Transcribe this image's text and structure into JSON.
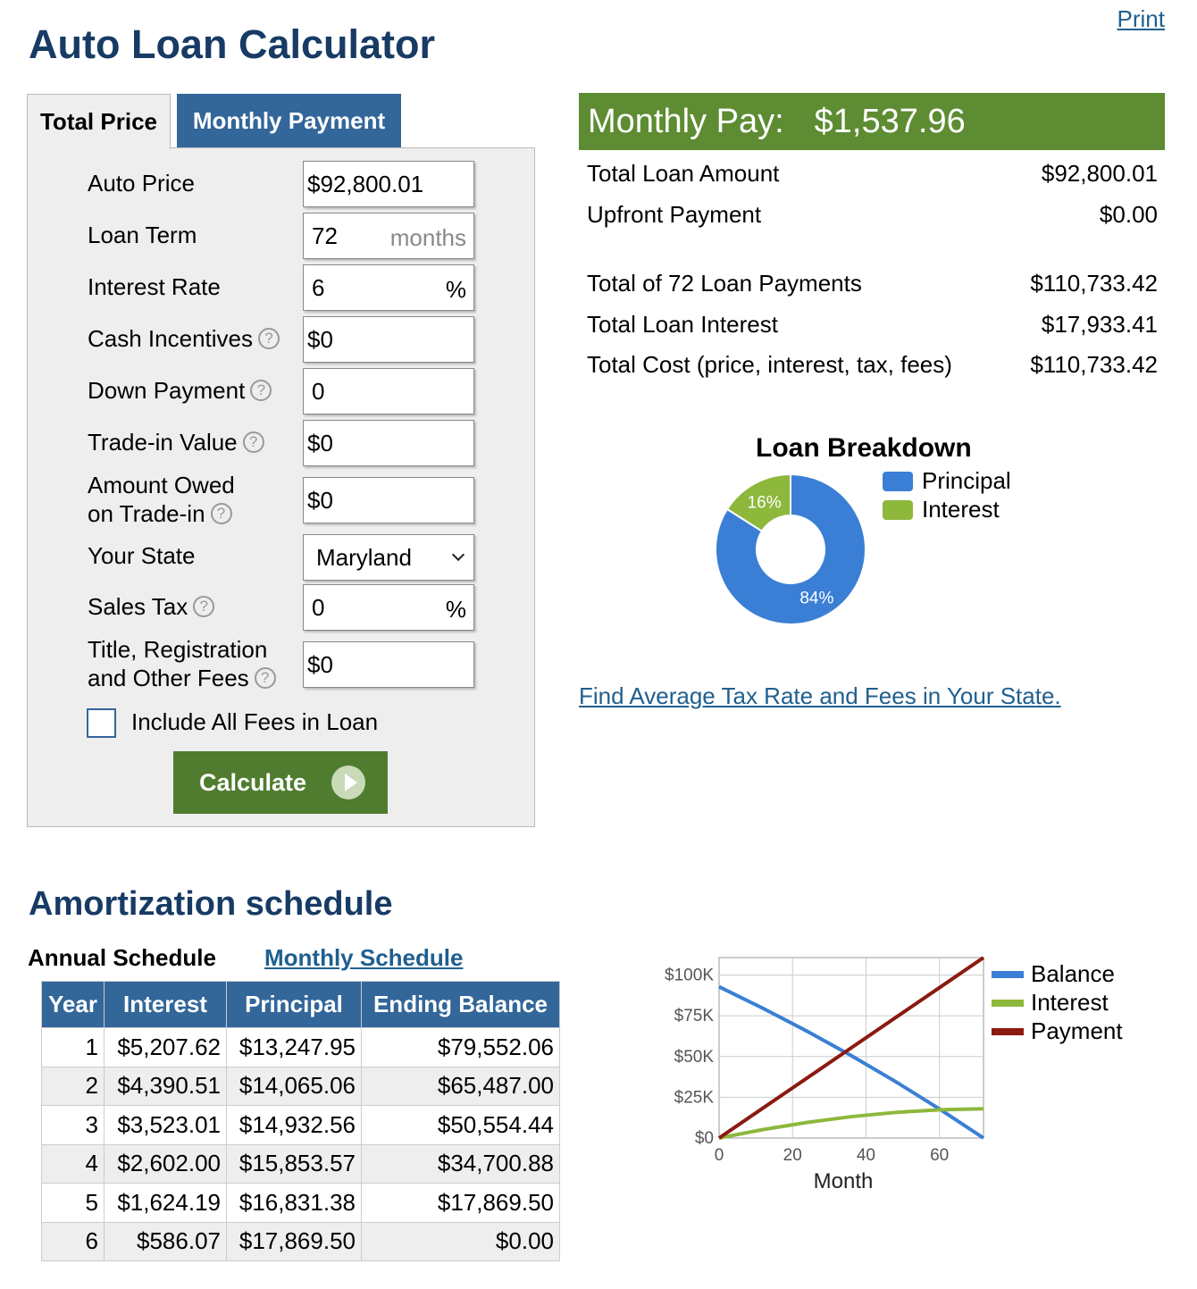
{
  "header": {
    "title": "Auto Loan Calculator",
    "print_label": "Print"
  },
  "tabs": [
    {
      "label": "Total Price"
    },
    {
      "label": "Monthly Payment"
    }
  ],
  "form": {
    "auto_price": {
      "label": "Auto Price",
      "value": "$92,800.01"
    },
    "loan_term": {
      "label": "Loan Term",
      "value": "72",
      "suffix": "months"
    },
    "interest_rate": {
      "label": "Interest Rate",
      "value": "6",
      "suffix": "%"
    },
    "cash_incentives": {
      "label": "Cash Incentives",
      "value": "$0"
    },
    "down_payment": {
      "label": "Down Payment",
      "value": "0"
    },
    "trade_in_value": {
      "label": "Trade-in Value",
      "value": "$0"
    },
    "amount_owed": {
      "label_line1": "Amount Owed",
      "label_line2": "on Trade-in",
      "value": "$0"
    },
    "your_state": {
      "label": "Your State",
      "value": "Maryland"
    },
    "sales_tax": {
      "label": "Sales Tax",
      "value": "0",
      "suffix": "%"
    },
    "fees": {
      "label_line1": "Title, Registration",
      "label_line2": "and Other Fees",
      "value": "$0"
    },
    "include_fees": {
      "label": "Include All Fees in Loan",
      "checked": false
    },
    "help_glyph": "?",
    "calculate_label": "Calculate"
  },
  "results": {
    "monthly_pay_label": "Monthly Pay:",
    "monthly_pay_value": "$1,537.96",
    "rows": [
      {
        "label": "Total Loan Amount",
        "value": "$92,800.01"
      },
      {
        "label": "Upfront Payment",
        "value": "$0.00"
      },
      {
        "label": "Total of 72 Loan Payments",
        "value": "$110,733.42"
      },
      {
        "label": "Total Loan Interest",
        "value": "$17,933.41"
      },
      {
        "label": "Total Cost (price, interest, tax, fees)",
        "value": "$110,733.42"
      }
    ],
    "find_tax_link": "Find Average Tax Rate and Fees in Your State."
  },
  "breakdown": {
    "title": "Loan Breakdown",
    "slices": [
      {
        "name": "Principal",
        "percent": 84,
        "label": "84%",
        "color": "#3a7fd5"
      },
      {
        "name": "Interest",
        "percent": 16,
        "label": "16%",
        "color": "#8db83c"
      }
    ]
  },
  "amortization": {
    "title": "Amortization schedule",
    "annual_label": "Annual Schedule",
    "monthly_link": "Monthly Schedule",
    "columns": [
      "Year",
      "Interest",
      "Principal",
      "Ending Balance"
    ],
    "rows": [
      [
        "1",
        "$5,207.62",
        "$13,247.95",
        "$79,552.06"
      ],
      [
        "2",
        "$4,390.51",
        "$14,065.06",
        "$65,487.00"
      ],
      [
        "3",
        "$3,523.01",
        "$14,932.56",
        "$50,554.44"
      ],
      [
        "4",
        "$2,602.00",
        "$15,853.57",
        "$34,700.88"
      ],
      [
        "5",
        "$1,624.19",
        "$16,831.38",
        "$17,869.50"
      ],
      [
        "6",
        "$586.07",
        "$17,869.50",
        "$0.00"
      ]
    ]
  },
  "chart_data": {
    "type": "line",
    "xlabel": "Month",
    "ylabel": "",
    "xlim": [
      0,
      72
    ],
    "ylim": [
      0,
      110733.42
    ],
    "x_ticks": [
      "0",
      "20",
      "40",
      "60"
    ],
    "y_ticks": [
      "$0",
      "$25K",
      "$50K",
      "$75K",
      "$100K"
    ],
    "grid": true,
    "legend_position": "right",
    "x": [
      0,
      12,
      24,
      36,
      48,
      60,
      72
    ],
    "series": [
      {
        "name": "Balance",
        "color": "#3a7fd5",
        "values": [
          92800.01,
          79552.06,
          65487.0,
          50554.44,
          34700.88,
          17869.5,
          0
        ]
      },
      {
        "name": "Interest",
        "color": "#8db83c",
        "values": [
          0,
          5207.62,
          9598.13,
          13121.14,
          15723.14,
          17347.33,
          17933.4
        ]
      },
      {
        "name": "Payment",
        "color": "#8b1a10",
        "values": [
          0,
          18455.52,
          36911.04,
          55366.56,
          73822.08,
          92277.6,
          110733.12
        ]
      }
    ]
  }
}
